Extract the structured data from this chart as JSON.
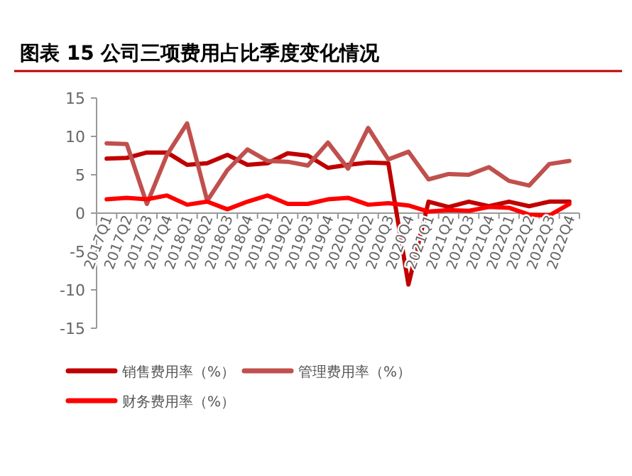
{
  "chart_data": {
    "type": "line",
    "title": "图表 15 公司三项费用占比季度变化情况",
    "categories": [
      "2017Q1",
      "2017Q2",
      "2017Q3",
      "2017Q4",
      "2018Q1",
      "2018Q2",
      "2018Q3",
      "2018Q4",
      "2019Q1",
      "2019Q2",
      "2019Q3",
      "2019Q4",
      "2020Q1",
      "2020Q2",
      "2020Q3",
      "2020Q4",
      "2021Q1",
      "2021Q2",
      "2021Q3",
      "2021Q4",
      "2022Q1",
      "2022Q2",
      "2022Q3",
      "2022Q4"
    ],
    "series": [
      {
        "name": "销售费用率（%）",
        "color": "#c00000",
        "values": [
          7.1,
          7.2,
          7.9,
          7.9,
          6.3,
          6.5,
          7.6,
          6.3,
          6.5,
          7.8,
          7.5,
          5.9,
          6.3,
          6.6,
          6.5,
          -9.3,
          1.5,
          0.8,
          1.5,
          0.9,
          1.5,
          0.9,
          1.5,
          1.5
        ]
      },
      {
        "name": "管理费用率（%）",
        "color": "#c0504d",
        "values": [
          9.1,
          9.0,
          1.2,
          7.6,
          11.7,
          1.6,
          5.6,
          8.3,
          6.8,
          6.7,
          6.2,
          9.2,
          5.8,
          11.1,
          7.0,
          8.0,
          4.4,
          5.1,
          5.0,
          6.0,
          4.2,
          3.6,
          6.4,
          6.8
        ]
      },
      {
        "name": "财务费用率（%）",
        "color": "#ff0000",
        "values": [
          1.8,
          2.0,
          1.8,
          2.3,
          1.1,
          1.5,
          0.5,
          1.5,
          2.3,
          1.2,
          1.2,
          1.8,
          2.0,
          1.1,
          1.3,
          1.0,
          0.2,
          0.4,
          0.3,
          0.8,
          0.7,
          -0.2,
          -0.3,
          1.2
        ]
      }
    ],
    "ylim": [
      -15,
      15
    ],
    "yticks": [
      -15,
      -10,
      -5,
      0,
      5,
      10,
      15
    ],
    "grid": false,
    "legend": "bottom",
    "marker": "none",
    "line_style": "solid"
  }
}
